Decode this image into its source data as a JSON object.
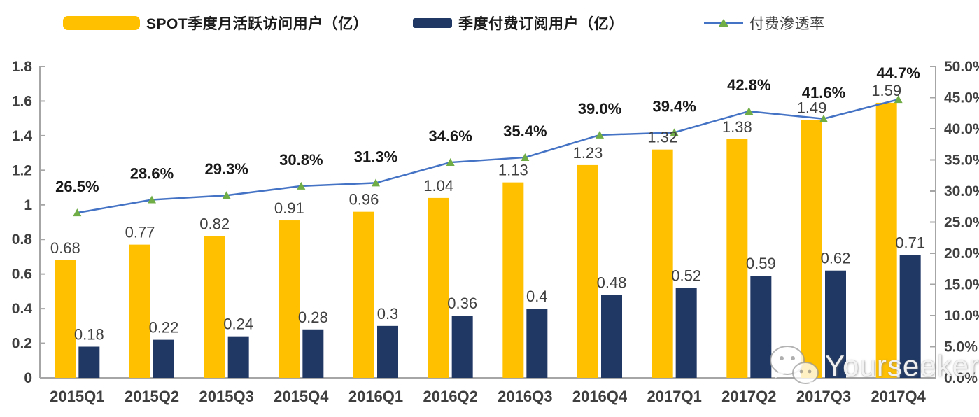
{
  "legend": [
    {
      "label": "SPOT季度月活跃访问用户（亿）",
      "color": "#FFC000",
      "type": "bar"
    },
    {
      "label": "季度付费订阅用户（亿）",
      "color": "#1F3864",
      "type": "bar"
    },
    {
      "label": "付费渗透率",
      "color": "#4472C4",
      "marker_color": "#70AD47",
      "type": "line"
    }
  ],
  "chart_data": {
    "type": "bar",
    "subtype": "grouped-bars-with-line",
    "title": "",
    "categories": [
      "2015Q1",
      "2015Q2",
      "2015Q3",
      "2015Q4",
      "2016Q1",
      "2016Q2",
      "2016Q3",
      "2016Q4",
      "2017Q1",
      "2017Q2",
      "2017Q3",
      "2017Q4"
    ],
    "series": [
      {
        "name": "SPOT季度月活跃访问用户（亿）",
        "type": "bar",
        "axis": "left",
        "color": "#FFC000",
        "values": [
          0.68,
          0.77,
          0.82,
          0.91,
          0.96,
          1.04,
          1.13,
          1.23,
          1.32,
          1.38,
          1.49,
          1.59
        ],
        "value_labels": [
          "0.68",
          "0.77",
          "0.82",
          "0.91",
          "0.96",
          "1.04",
          "1.13",
          "1.23",
          "1.32",
          "1.38",
          "1.49",
          "1.59"
        ]
      },
      {
        "name": "季度付费订阅用户（亿）",
        "type": "bar",
        "axis": "left",
        "color": "#1F3864",
        "values": [
          0.18,
          0.22,
          0.24,
          0.28,
          0.3,
          0.36,
          0.4,
          0.48,
          0.52,
          0.59,
          0.62,
          0.71
        ],
        "value_labels": [
          "0.18",
          "0.22",
          "0.24",
          "0.28",
          "0.3",
          "0.36",
          "0.4",
          "0.48",
          "0.52",
          "0.59",
          "0.62",
          "0.71"
        ]
      },
      {
        "name": "付费渗透率",
        "type": "line",
        "axis": "right",
        "color": "#4472C4",
        "marker": "triangle",
        "marker_color": "#70AD47",
        "values": [
          26.5,
          28.6,
          29.3,
          30.8,
          31.3,
          34.6,
          35.4,
          39.0,
          39.4,
          42.8,
          41.6,
          44.7
        ],
        "value_labels": [
          "26.5%",
          "28.6%",
          "29.3%",
          "30.8%",
          "31.3%",
          "34.6%",
          "35.4%",
          "39.0%",
          "39.4%",
          "42.8%",
          "41.6%",
          "44.7%"
        ]
      }
    ],
    "left_axis": {
      "min": 0,
      "max": 1.8,
      "step": 0.2,
      "ticks": [
        "0",
        "0.2",
        "0.4",
        "0.6",
        "0.8",
        "1",
        "1.2",
        "1.4",
        "1.6",
        "1.8"
      ]
    },
    "right_axis": {
      "min": 0,
      "max": 50,
      "step": 5,
      "ticks": [
        "0.0%",
        "5.0%",
        "10.0%",
        "15.0%",
        "20.0%",
        "25.0%",
        "30.0%",
        "35.0%",
        "40.0%",
        "45.0%",
        "50.0%"
      ]
    },
    "grid": false,
    "legend_position": "top"
  },
  "watermark": {
    "text": "Yourseeker",
    "icon": "wechat-icon"
  },
  "colors": {
    "bar_mau": "#FFC000",
    "bar_subs": "#1F3864",
    "line": "#4472C4",
    "marker": "#70AD47",
    "axis": "#A6A6A6",
    "tick_text": "#3F3F3F",
    "value_text": "#404040",
    "pct_text": "#1a1a1a"
  }
}
